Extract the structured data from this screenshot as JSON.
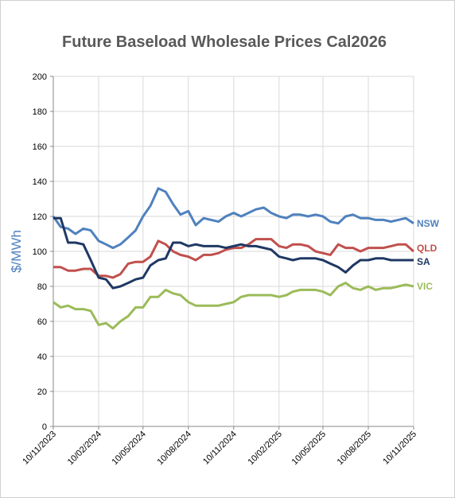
{
  "chart_data": {
    "type": "line",
    "title": "Future Baseload Wholesale Prices Cal2026",
    "y_label": "$/MWh",
    "x": [
      "10/11/2023",
      "25/11/2023",
      "10/12/2023",
      "25/12/2023",
      "10/01/2024",
      "25/01/2024",
      "10/02/2024",
      "25/02/2024",
      "10/03/2024",
      "25/03/2024",
      "10/04/2024",
      "25/04/2024",
      "10/05/2024",
      "25/05/2024",
      "10/06/2024",
      "25/06/2024",
      "10/07/2024",
      "25/07/2024",
      "10/08/2024",
      "25/08/2024",
      "10/09/2024",
      "25/09/2024",
      "10/10/2024",
      "25/10/2024",
      "10/11/2024",
      "25/11/2024",
      "10/12/2024",
      "25/12/2024",
      "10/01/2025",
      "25/01/2025",
      "10/02/2025",
      "25/02/2025",
      "10/03/2025",
      "25/03/2025",
      "10/04/2025",
      "25/04/2025",
      "10/05/2025",
      "25/05/2025",
      "10/06/2025",
      "25/06/2025",
      "10/07/2025",
      "25/07/2025",
      "10/08/2025",
      "25/08/2025",
      "10/09/2025",
      "25/09/2025",
      "10/10/2025",
      "25/10/2025",
      "10/11/2025"
    ],
    "series": [
      {
        "name": "NSW",
        "color": "#4f81bd",
        "values": [
          120,
          114,
          113,
          110,
          113,
          112,
          106,
          104,
          102,
          104,
          108,
          112,
          120,
          126,
          136,
          134,
          127,
          121,
          123,
          115,
          119,
          118,
          117,
          120,
          122,
          120,
          122,
          124,
          125,
          122,
          120,
          119,
          121,
          121,
          120,
          121,
          120,
          117,
          116,
          120,
          121,
          119,
          119,
          118,
          118,
          117,
          118,
          119,
          116
        ]
      },
      {
        "name": "QLD",
        "color": "#c0504d",
        "values": [
          91,
          91,
          89,
          89,
          90,
          90,
          86,
          86,
          85,
          87,
          93,
          94,
          94,
          97,
          106,
          104,
          100,
          98,
          97,
          95,
          98,
          98,
          99,
          101,
          102,
          102,
          104,
          107,
          107,
          107,
          103,
          102,
          104,
          104,
          103,
          100,
          99,
          98,
          104,
          102,
          102,
          100,
          102,
          102,
          102,
          103,
          104,
          104,
          100
        ]
      },
      {
        "name": "SA",
        "color": "#1f3864",
        "values": [
          119,
          119,
          105,
          105,
          104,
          95,
          85,
          84,
          79,
          80,
          82,
          84,
          85,
          92,
          95,
          96,
          105,
          105,
          103,
          104,
          103,
          103,
          103,
          102,
          103,
          104,
          103,
          103,
          102,
          101,
          97,
          96,
          95,
          96,
          96,
          96,
          95,
          93,
          91,
          88,
          92,
          95,
          95,
          96,
          96,
          95,
          95,
          95,
          95
        ]
      },
      {
        "name": "VIC",
        "color": "#9bbb59",
        "values": [
          71,
          68,
          69,
          67,
          67,
          66,
          58,
          59,
          56,
          60,
          63,
          68,
          68,
          74,
          74,
          78,
          76,
          75,
          71,
          69,
          69,
          69,
          69,
          70,
          71,
          74,
          75,
          75,
          75,
          75,
          74,
          75,
          77,
          78,
          78,
          78,
          77,
          75,
          80,
          82,
          79,
          78,
          80,
          78,
          79,
          79,
          80,
          81,
          80
        ]
      }
    ],
    "xlim": [
      "10/11/2023",
      "10/11/2025"
    ],
    "xticks": [
      "10/11/2023",
      "10/02/2024",
      "10/05/2024",
      "10/08/2024",
      "10/11/2024",
      "10/02/2025",
      "10/05/2025",
      "10/08/2025",
      "10/11/2025"
    ],
    "ylim": [
      0,
      200
    ],
    "yticks": [
      0,
      20,
      40,
      60,
      80,
      100,
      120,
      140,
      160,
      180,
      200
    ],
    "grid": true
  }
}
